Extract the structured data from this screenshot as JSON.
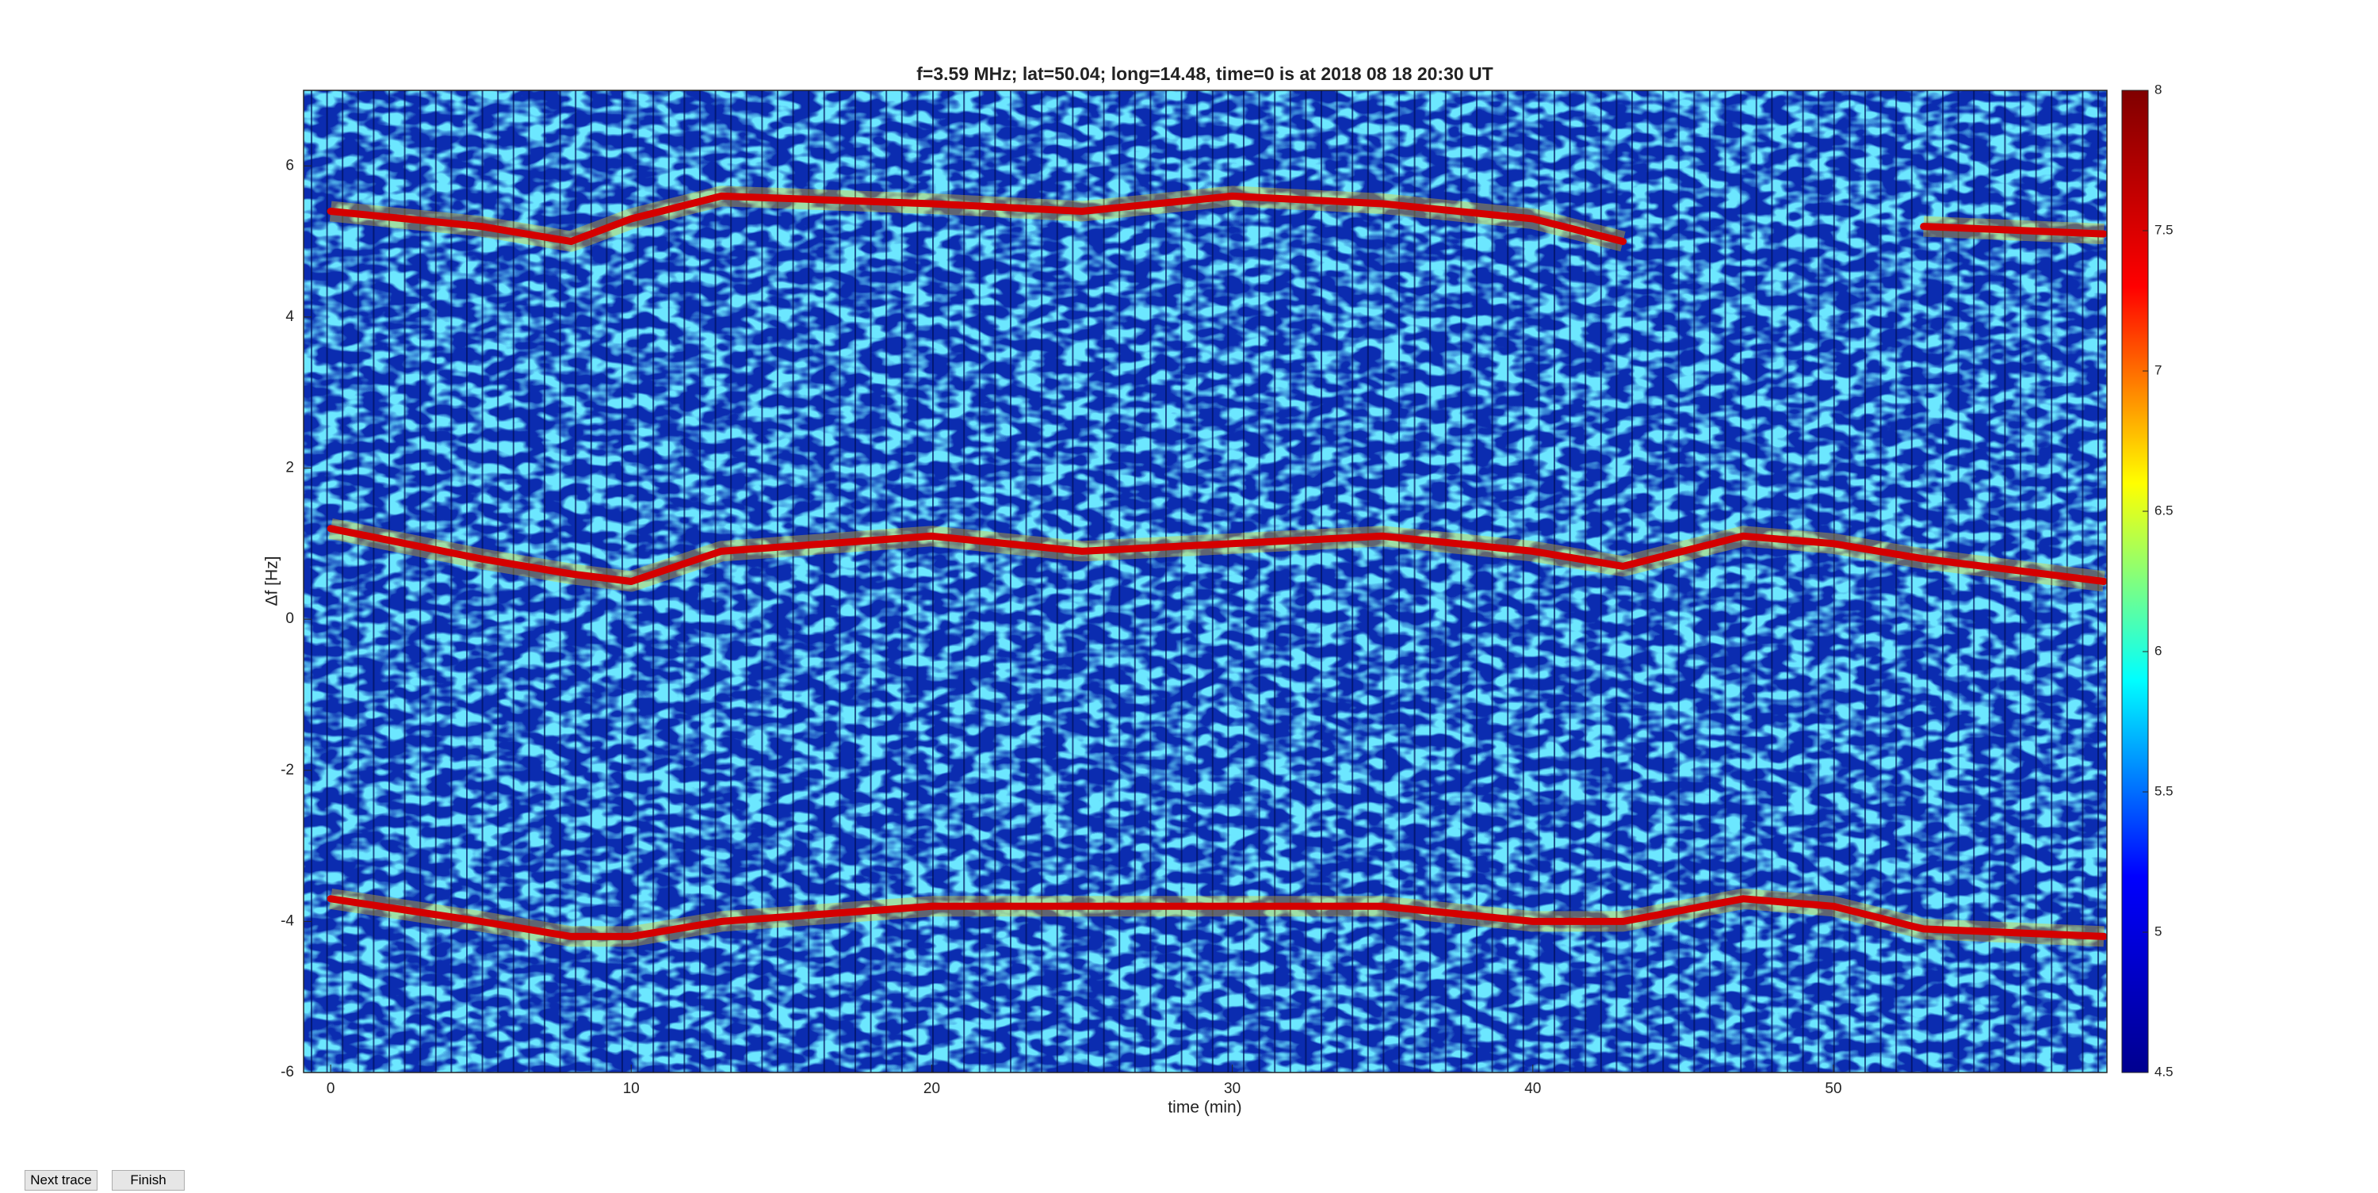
{
  "chart_data": {
    "type": "spectrogram",
    "title": "f=3.59 MHz;  lat=50.04; long=14.48, time=0 is at 2018 08 18 20:30 UT",
    "xlabel": "time (min)",
    "ylabel": "Δf [Hz]",
    "x": [
      0,
      5,
      8,
      10,
      13,
      20,
      25,
      30,
      35,
      40,
      43,
      47,
      50,
      53,
      59
    ],
    "series": [
      {
        "color": "#d40000",
        "values": [
          5.4,
          5.2,
          5.0,
          5.3,
          5.6,
          5.5,
          5.4,
          5.6,
          5.5,
          5.3,
          5.0,
          null,
          null,
          5.2,
          5.1
        ]
      },
      {
        "color": "#d40000",
        "values": [
          1.2,
          0.8,
          0.6,
          0.5,
          0.9,
          1.1,
          0.9,
          1.0,
          1.1,
          0.9,
          0.7,
          1.1,
          1.0,
          0.8,
          0.5
        ]
      },
      {
        "color": "#d40000",
        "values": [
          -3.7,
          -4.0,
          -4.2,
          -4.2,
          -4.0,
          -3.8,
          -3.8,
          -3.8,
          -3.8,
          -4.0,
          -4.0,
          -3.7,
          -3.8,
          -4.1,
          -4.2
        ]
      }
    ],
    "xlim": [
      -0.9,
      59.1
    ],
    "xticks": [
      0,
      10,
      20,
      30,
      40,
      50
    ],
    "ylim": [
      -6,
      7
    ],
    "yticks": [
      -6,
      -4,
      -2,
      0,
      2,
      4,
      6
    ],
    "clim": [
      4.5,
      8
    ],
    "cticks": [
      4.5,
      5,
      5.5,
      6,
      6.5,
      7,
      7.5,
      8
    ],
    "colormap": [
      "#00008f",
      "#0000ff",
      "#00ffff",
      "#ffff00",
      "#ff0000",
      "#800000"
    ]
  },
  "buttons": [
    "Next trace",
    "Finish"
  ]
}
